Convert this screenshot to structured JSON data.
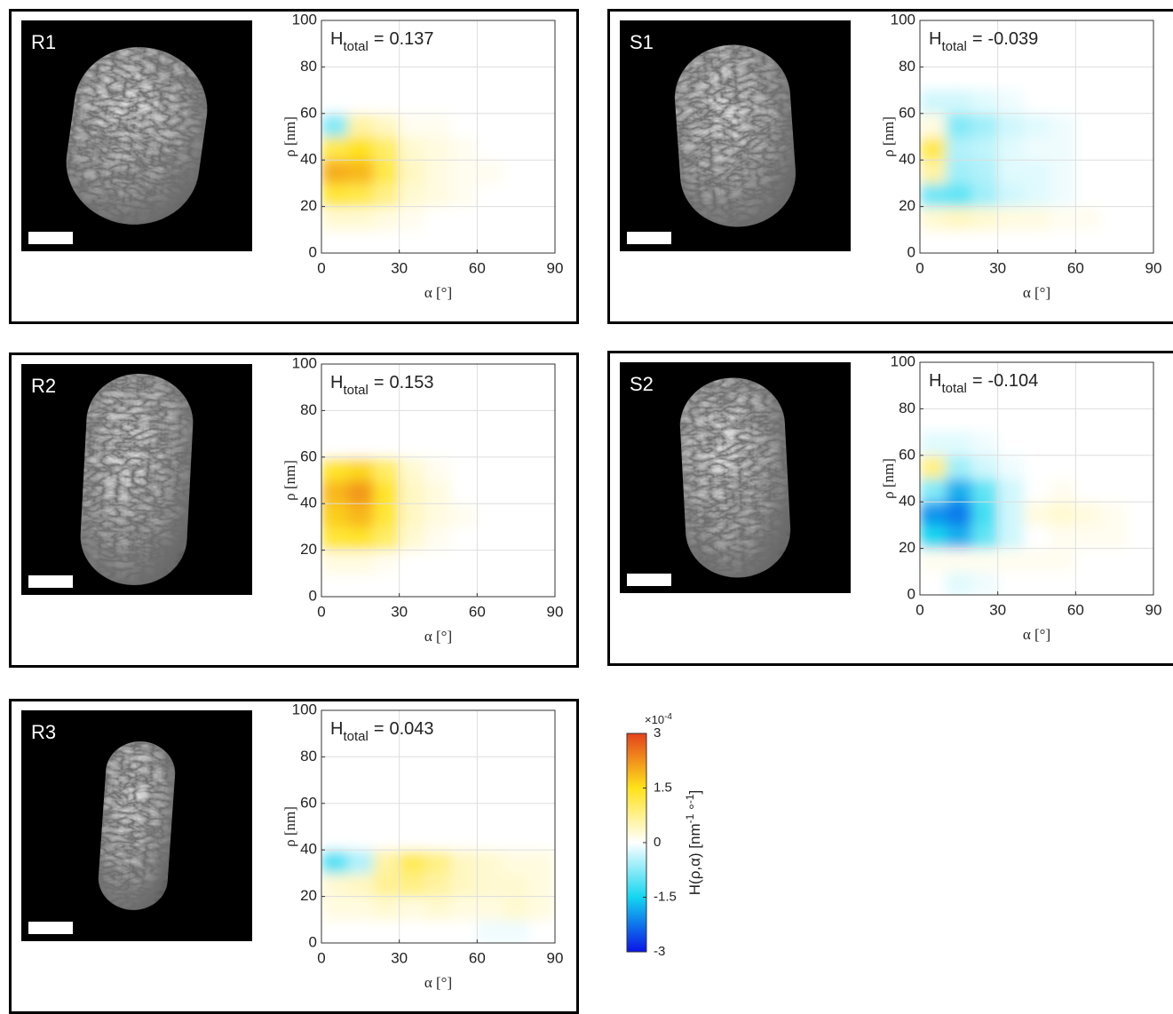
{
  "chart_data": [
    {
      "type": "heatmap",
      "label": "R1",
      "annotation": {
        "symbol": "H",
        "subscript": "total",
        "relation": "=",
        "value": 0.137
      },
      "xlabel": "α [°]",
      "ylabel": "ρ [nm]",
      "xlim": [
        0,
        90
      ],
      "ylim": [
        0,
        100
      ],
      "xticks": [
        0,
        30,
        60,
        90
      ],
      "yticks": [
        0,
        20,
        40,
        60,
        80,
        100
      ],
      "grid": true,
      "xbins": [
        0,
        10,
        20,
        30,
        40,
        50,
        60,
        70,
        80,
        90
      ],
      "ybins": [
        0,
        10,
        20,
        30,
        40,
        50,
        60,
        70
      ],
      "z": [
        [
          0,
          0,
          0,
          0,
          0,
          0,
          0,
          0,
          0
        ],
        [
          0.3,
          0.3,
          0.2,
          0.1,
          0,
          0,
          0,
          0,
          0
        ],
        [
          1.3,
          1.2,
          0.8,
          0.3,
          0.2,
          0.1,
          0,
          0,
          0
        ],
        [
          2.0,
          1.9,
          1.2,
          0.4,
          0.2,
          0.1,
          0.1,
          0,
          0
        ],
        [
          1.2,
          1.5,
          1.0,
          0.3,
          0.2,
          0.1,
          0,
          0,
          0
        ],
        [
          -0.8,
          0.6,
          0.4,
          0.1,
          0.1,
          0,
          0,
          0,
          0
        ],
        [
          0,
          0,
          0,
          0,
          0,
          0,
          0,
          0,
          0
        ]
      ]
    },
    {
      "type": "heatmap",
      "label": "S1",
      "annotation": {
        "symbol": "H",
        "subscript": "total",
        "relation": "=",
        "value": -0.039
      },
      "xlabel": "α [°]",
      "ylabel": "ρ [nm]",
      "xlim": [
        0,
        90
      ],
      "ylim": [
        0,
        100
      ],
      "xticks": [
        0,
        30,
        60,
        90
      ],
      "yticks": [
        0,
        20,
        40,
        60,
        80,
        100
      ],
      "grid": true,
      "xbins": [
        0,
        10,
        20,
        30,
        40,
        50,
        60,
        70,
        80,
        90
      ],
      "ybins": [
        0,
        10,
        20,
        30,
        40,
        50,
        60,
        70
      ],
      "z": [
        [
          0,
          0,
          0,
          0,
          0,
          0,
          0,
          0,
          0
        ],
        [
          0.3,
          0.4,
          0.3,
          0.2,
          0.2,
          0.1,
          0.1,
          0,
          0
        ],
        [
          -0.9,
          -1.0,
          -0.6,
          -0.3,
          -0.2,
          -0.1,
          0,
          0,
          0
        ],
        [
          0.6,
          -0.6,
          -0.5,
          -0.2,
          -0.2,
          -0.1,
          0,
          0,
          0
        ],
        [
          1.2,
          -0.5,
          -0.4,
          -0.2,
          -0.1,
          -0.1,
          0,
          0,
          0
        ],
        [
          0.2,
          -0.8,
          -0.6,
          -0.3,
          -0.2,
          -0.1,
          0,
          0,
          0
        ],
        [
          -0.3,
          -0.3,
          -0.2,
          -0.1,
          0,
          0,
          0,
          0,
          0
        ]
      ]
    },
    {
      "type": "heatmap",
      "label": "R2",
      "annotation": {
        "symbol": "H",
        "subscript": "total",
        "relation": "=",
        "value": 0.153
      },
      "xlabel": "α [°]",
      "ylabel": "ρ [nm]",
      "xlim": [
        0,
        90
      ],
      "ylim": [
        0,
        100
      ],
      "xticks": [
        0,
        30,
        60,
        90
      ],
      "yticks": [
        0,
        20,
        40,
        60,
        80,
        100
      ],
      "grid": true,
      "xbins": [
        0,
        10,
        20,
        30,
        40,
        50,
        60,
        70,
        80,
        90
      ],
      "ybins": [
        0,
        10,
        20,
        30,
        40,
        50,
        60,
        70
      ],
      "z": [
        [
          0,
          0,
          0,
          0,
          0,
          0,
          0,
          0,
          0
        ],
        [
          0.2,
          0.2,
          0.1,
          0,
          0,
          0,
          0,
          0,
          0
        ],
        [
          1.3,
          1.4,
          1.0,
          0.3,
          0.1,
          0,
          0,
          0,
          0
        ],
        [
          1.7,
          1.9,
          1.3,
          0.4,
          0.2,
          0.1,
          0,
          0,
          0
        ],
        [
          1.9,
          2.2,
          1.4,
          0.4,
          0.2,
          0,
          0,
          0,
          0
        ],
        [
          1.4,
          1.6,
          1.0,
          0.3,
          0.1,
          0,
          0,
          0,
          0
        ],
        [
          0,
          0,
          0,
          0,
          0,
          0,
          0,
          0,
          0
        ]
      ]
    },
    {
      "type": "heatmap",
      "label": "S2",
      "annotation": {
        "symbol": "H",
        "subscript": "total",
        "relation": "=",
        "value": -0.104
      },
      "xlabel": "α [°]",
      "ylabel": "ρ [nm]",
      "xlim": [
        0,
        90
      ],
      "ylim": [
        0,
        100
      ],
      "xticks": [
        0,
        30,
        60,
        90
      ],
      "yticks": [
        0,
        20,
        40,
        60,
        80,
        100
      ],
      "grid": true,
      "xbins": [
        0,
        10,
        20,
        30,
        40,
        50,
        60,
        70,
        80,
        90
      ],
      "ybins": [
        0,
        10,
        20,
        30,
        40,
        50,
        60,
        70
      ],
      "z": [
        [
          0,
          -0.2,
          -0.1,
          0,
          0,
          0,
          0,
          0,
          0
        ],
        [
          0.1,
          0.1,
          0.1,
          0.1,
          0.1,
          0.1,
          0,
          0,
          0
        ],
        [
          -1.5,
          -1.8,
          -1.0,
          -0.3,
          0,
          0.1,
          0.1,
          0.1,
          0
        ],
        [
          -2.0,
          -2.2,
          -1.2,
          -0.3,
          0.2,
          0.3,
          0.2,
          0.1,
          0
        ],
        [
          -0.8,
          -1.8,
          -1.0,
          -0.3,
          0,
          0.1,
          0,
          0,
          0
        ],
        [
          0.8,
          -0.6,
          -0.3,
          -0.1,
          0,
          0,
          0,
          0,
          0
        ],
        [
          -0.2,
          -0.2,
          -0.1,
          0,
          0,
          0,
          0,
          0,
          0
        ]
      ]
    },
    {
      "type": "heatmap",
      "label": "R3",
      "annotation": {
        "symbol": "H",
        "subscript": "total",
        "relation": "=",
        "value": 0.043
      },
      "xlabel": "α [°]",
      "ylabel": "ρ [nm]",
      "xlim": [
        0,
        90
      ],
      "ylim": [
        0,
        100
      ],
      "xticks": [
        0,
        30,
        60,
        90
      ],
      "yticks": [
        0,
        20,
        40,
        60,
        80,
        100
      ],
      "grid": true,
      "xbins": [
        0,
        10,
        20,
        30,
        40,
        50,
        60,
        70,
        80,
        90
      ],
      "ybins": [
        0,
        10,
        20,
        30,
        40,
        50,
        60,
        70
      ],
      "z": [
        [
          0,
          0,
          0,
          0,
          0,
          0,
          -0.1,
          -0.1,
          0
        ],
        [
          0.2,
          0.2,
          0.3,
          0.2,
          0.3,
          0.2,
          0.2,
          0.3,
          0.2
        ],
        [
          0.3,
          0.4,
          0.7,
          0.8,
          0.6,
          0.4,
          0.3,
          0.3,
          0.2
        ],
        [
          -1.1,
          -0.5,
          0.6,
          1.1,
          0.8,
          0.4,
          0.3,
          0.2,
          0.2
        ],
        [
          0,
          0,
          0,
          0,
          0,
          0,
          0,
          0,
          0
        ],
        [
          0,
          0,
          0,
          0,
          0,
          0,
          0,
          0,
          0
        ],
        [
          0,
          0,
          0,
          0,
          0,
          0,
          0,
          0,
          0
        ]
      ]
    },
    {
      "type": "colorbar",
      "zlim": [
        -3,
        3
      ],
      "zticks": [
        -3,
        -1.5,
        0,
        1.5,
        3
      ],
      "colormap": [
        "#0a14e6",
        "#14d6f0",
        "#ffffff",
        "#ffe21a",
        "#e4421c"
      ],
      "multiplier": {
        "base": "×10",
        "exponent": "-4"
      },
      "label": [
        {
          "text": "H(ρ,α) [nm"
        },
        {
          "sup": "-1"
        },
        {
          "text": " °"
        },
        {
          "sup": "-1"
        },
        {
          "text": "]"
        }
      ]
    }
  ]
}
